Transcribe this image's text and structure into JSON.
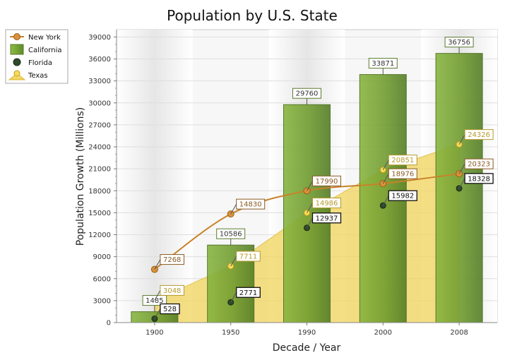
{
  "chart_data": {
    "type": "bar",
    "title": "Population by U.S. State",
    "xlabel": "Decade / Year",
    "ylabel": "Population Growth (Millions)",
    "categories": [
      "1900",
      "1950",
      "1990",
      "2000",
      "2008"
    ],
    "ylim": [
      0,
      40000
    ],
    "yticks": [
      0,
      3000,
      6000,
      9000,
      12000,
      15000,
      18000,
      21000,
      24000,
      27000,
      30000,
      33000,
      36000,
      39000
    ],
    "grid": true,
    "legend_position": "top-left",
    "series": [
      {
        "name": "New York",
        "kind": "line",
        "color": "#c8822a",
        "values": [
          7268,
          14830,
          17990,
          18976,
          20323
        ]
      },
      {
        "name": "California",
        "kind": "bar",
        "color": "#7aa334",
        "values": [
          1485,
          10586,
          29760,
          33871,
          36756
        ]
      },
      {
        "name": "Florida",
        "kind": "point",
        "color": "#2f4a2a",
        "values": [
          528,
          2771,
          12937,
          15982,
          18328
        ]
      },
      {
        "name": "Texas",
        "kind": "area",
        "color": "#f2d45c",
        "values": [
          3048,
          7711,
          14986,
          20851,
          24326
        ]
      }
    ]
  }
}
